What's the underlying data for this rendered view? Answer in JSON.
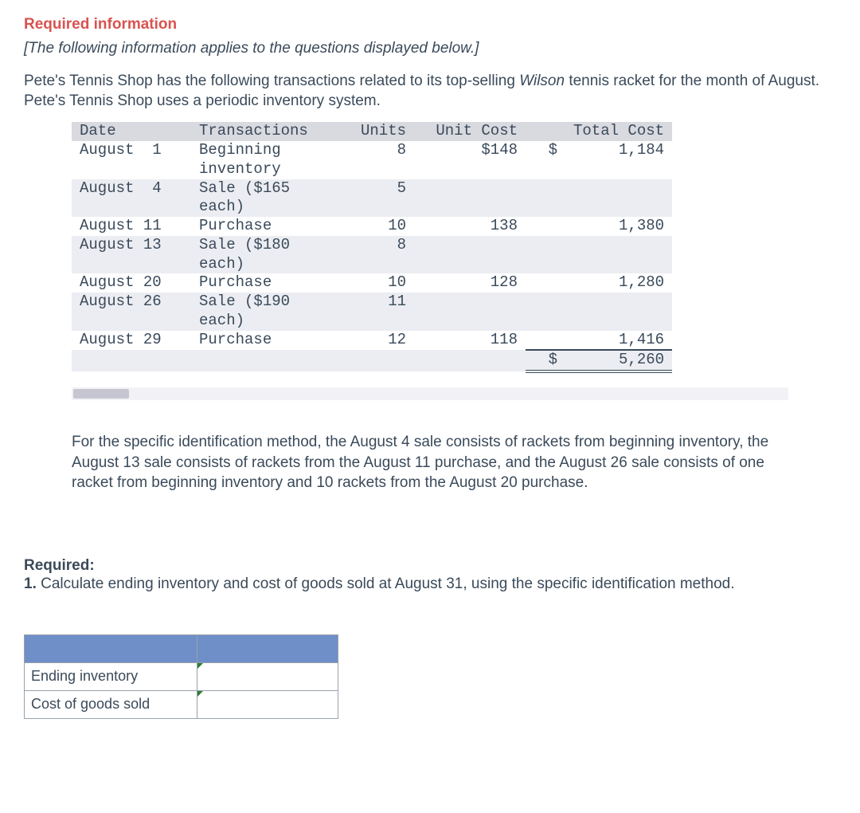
{
  "text": {
    "required_info": "Required information",
    "note": "[The following information applies to the questions displayed below.]",
    "intro_a": "Pete's Tennis Shop has the following transactions related to its top-selling ",
    "intro_wilson": "Wilson",
    "intro_b": " tennis racket for the month of August. Pete's Tennis Shop uses a periodic inventory system.",
    "spec_id": "For the specific identification method, the August 4 sale consists of rackets from beginning inventory, the August 13 sale consists of rackets from the August 11 purchase, and the August 26 sale consists of one racket from beginning inventory and 10 rackets from the August 20 purchase.",
    "required_label": "Required:",
    "question_prefix": "1. ",
    "question": "Calculate ending inventory and cost of goods sold at August 31, using the specific identification method."
  },
  "table": {
    "headers": {
      "date": "Date",
      "trans": "Transactions",
      "units": "Units",
      "unit_cost": "Unit Cost",
      "total_cost": "Total Cost"
    },
    "rows": [
      {
        "date": "August  1",
        "trans": "Beginning\ninventory",
        "units": "8",
        "unit_cost": "$148",
        "tc_sym": "$",
        "tc_val": "1,184",
        "alt": false
      },
      {
        "date": "August  4",
        "trans": "Sale ($165\neach)",
        "units": "5",
        "unit_cost": "",
        "tc_sym": "",
        "tc_val": "",
        "alt": true
      },
      {
        "date": "August 11",
        "trans": "Purchase",
        "units": "10",
        "unit_cost": "138",
        "tc_sym": "",
        "tc_val": "1,380",
        "alt": false
      },
      {
        "date": "August 13",
        "trans": "Sale ($180\neach)",
        "units": "8",
        "unit_cost": "",
        "tc_sym": "",
        "tc_val": "",
        "alt": true
      },
      {
        "date": "August 20",
        "trans": "Purchase",
        "units": "10",
        "unit_cost": "128",
        "tc_sym": "",
        "tc_val": "1,280",
        "alt": false
      },
      {
        "date": "August 26",
        "trans": "Sale ($190\neach)",
        "units": "11",
        "unit_cost": "",
        "tc_sym": "",
        "tc_val": "",
        "alt": true
      },
      {
        "date": "August 29",
        "trans": "Purchase",
        "units": "12",
        "unit_cost": "118",
        "tc_sym": "",
        "tc_val": "1,416",
        "alt": false,
        "underline": true
      }
    ],
    "total": {
      "tc_sym": "$",
      "tc_val": "5,260"
    }
  },
  "answer_table": {
    "row1": "Ending inventory",
    "row2": "Cost of goods sold"
  },
  "colors": {
    "heading_red": "#d9534f",
    "text": "#3a4a5a",
    "table_header_bg": "#d9d9e0",
    "table_alt_bg": "#ecedf2",
    "answer_header_bg": "#6f8fc9",
    "border": "#9aa1ab"
  },
  "fonts": {
    "body": "Arial 19px",
    "mono": "Courier New 19px"
  }
}
